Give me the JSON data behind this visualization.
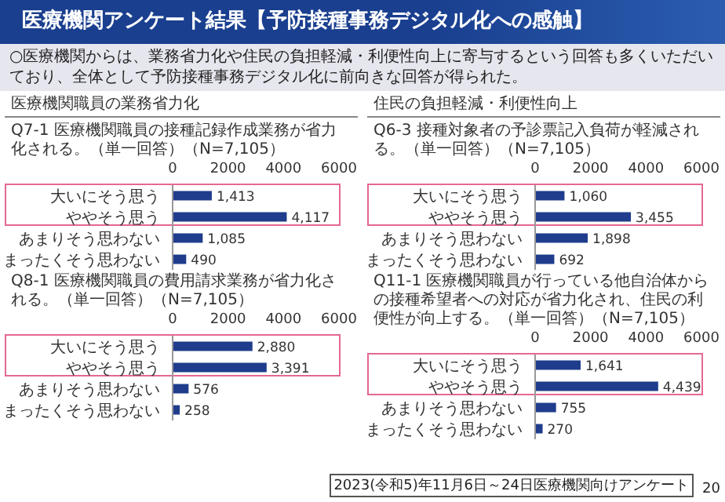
{
  "chart_data": [
    {
      "type": "bar",
      "orientation": "horizontal",
      "title": "Q7-1 医療機関職員の接種記録作成業務が省力化される。（単一回答）（N=7,105）",
      "annotations": [
        "医療機関アンケート結果【予防接種事務デジタル化への感触】",
        "○医療機関からは、業務省力化や住民の負担軽減・利便性向上に寄与するという回答も多くいただいており、全体として予防接種事務デジタル化に前向きな回答が得られた。",
        "医療機関職員の業務省力化"
      ],
      "categories": [
        "大いにそう思う",
        "ややそう思う",
        "あまりそう思わない",
        "まったくそう思わない"
      ],
      "values": [
        1413,
        4117,
        1085,
        490
      ],
      "value_labels": [
        "1,413",
        "4,117",
        "1,085",
        "490"
      ],
      "color": "#1f3d8c",
      "xlim": [
        0,
        6000
      ],
      "xticks": [
        0,
        2000,
        4000,
        6000
      ]
    },
    {
      "type": "bar",
      "orientation": "horizontal",
      "title": "Q6-3 接種対象者の予診票記入負荷が軽減される。（単一回答）（N=7,105）",
      "annotations": [
        "住民の負担軽減・利便性向上"
      ],
      "categories": [
        "大いにそう思う",
        "ややそう思う",
        "あまりそう思わない",
        "まったくそう思わない"
      ],
      "values": [
        1060,
        3455,
        1898,
        692
      ],
      "value_labels": [
        "1,060",
        "3,455",
        "1,898",
        "692"
      ],
      "color": "#1f3d8c",
      "xlim": [
        0,
        6000
      ],
      "xticks": [
        0,
        2000,
        4000,
        6000
      ]
    },
    {
      "type": "bar",
      "orientation": "horizontal",
      "title": "Q8-1 医療機関職員の費用請求業務が省力化される。（単一回答）（N=7,105）",
      "categories": [
        "大いにそう思う",
        "ややそう思う",
        "あまりそう思わない",
        "まったくそう思わない"
      ],
      "values": [
        2880,
        3391,
        576,
        258
      ],
      "value_labels": [
        "2,880",
        "3,391",
        "576",
        "258"
      ],
      "color": "#1f3d8c",
      "xlim": [
        0,
        6000
      ],
      "xticks": [
        0,
        2000,
        4000,
        6000
      ]
    },
    {
      "type": "bar",
      "orientation": "horizontal",
      "title": "Q11-1 医療機関職員が行っている他自治体からの接種希望者への対応が省力化され、住民の利便性が向上する。（単一回答）（N=7,105）",
      "annotations": [
        "2023(令和5)年11月6日～24日医療機関向けアンケート",
        "20"
      ],
      "categories": [
        "大いにそう思う",
        "ややそう思う",
        "あまりそう思わない",
        "まったくそう思わない"
      ],
      "values": [
        1641,
        4439,
        755,
        270
      ],
      "value_labels": [
        "1,641",
        "4,439",
        "755",
        "270"
      ],
      "color": "#1f3d8c",
      "xlim": [
        0,
        6000
      ],
      "xticks": [
        0,
        2000,
        4000,
        6000
      ]
    }
  ]
}
